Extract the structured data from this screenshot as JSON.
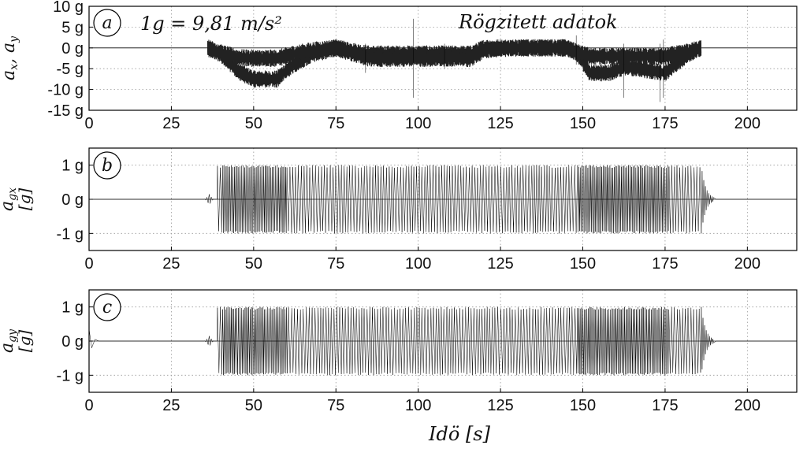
{
  "chart_data": [
    {
      "panel": "a",
      "type": "line",
      "badge": "a",
      "ylabel": "a_x, a_y",
      "formula": "1g = 9,81 m/s²",
      "annotation": "Rögzitett adatok",
      "xlim": [
        0,
        215
      ],
      "ylim": [
        -15,
        10
      ],
      "x_ticks": [
        0,
        25,
        50,
        75,
        100,
        125,
        150,
        175,
        200
      ],
      "y_ticks": [
        10,
        5,
        0,
        -5,
        -10,
        -15
      ],
      "y_tick_labels": [
        "10 g",
        "5 g",
        "0 g",
        "-5 g",
        "-10 g",
        "-15 g"
      ],
      "grid": true,
      "series": [
        {
          "x": [
            36,
            40,
            45,
            50,
            57,
            62,
            68,
            75,
            85,
            98,
            100,
            110,
            116,
            120,
            130,
            145,
            148,
            152,
            158,
            163,
            167,
            175,
            182,
            186
          ],
          "values": [
            0,
            -1.5,
            -5.5,
            -7.5,
            -7.5,
            -4,
            -1.5,
            0,
            -1.5,
            -1.5,
            -1.5,
            -1.5,
            -1.5,
            0,
            0,
            0,
            -1,
            -6,
            -6,
            -4.5,
            -5,
            -6,
            -1.5,
            0
          ]
        },
        {
          "x": [
            36,
            40,
            45,
            50,
            57,
            62,
            68,
            75,
            85,
            98,
            100,
            110,
            116,
            120,
            130,
            145,
            148,
            152,
            158,
            163,
            167,
            175,
            182,
            186
          ],
          "values": [
            0,
            -1.2,
            -2.3,
            -2.5,
            -2.5,
            -1.5,
            -0.6,
            0,
            -2.5,
            -2.5,
            -2.5,
            -2.5,
            -2.5,
            -0.5,
            0,
            0,
            -1,
            -2,
            -2,
            -2,
            -2,
            -2,
            -1,
            0
          ]
        }
      ]
    },
    {
      "panel": "b",
      "type": "line",
      "badge": "b",
      "ylabel": "a_gx [g]",
      "xlim": [
        0,
        215
      ],
      "ylim": [
        -1.5,
        1.5
      ],
      "x_ticks": [
        0,
        25,
        50,
        75,
        100,
        125,
        150,
        175,
        200
      ],
      "y_ticks": [
        1,
        0,
        -1
      ],
      "y_tick_labels": [
        "1 g",
        "0 g",
        "-1 g"
      ],
      "grid": true,
      "signal": {
        "start": 39,
        "end": 186,
        "amplitude": 1,
        "pre_blip_x": 36.5,
        "post_ringdown_end": 190
      }
    },
    {
      "panel": "c",
      "type": "line",
      "badge": "c",
      "ylabel": "a_gy [g]",
      "xlabel": "Idö [s]",
      "xlim": [
        0,
        215
      ],
      "ylim": [
        -1.5,
        1.5
      ],
      "x_ticks": [
        0,
        25,
        50,
        75,
        100,
        125,
        150,
        175,
        200
      ],
      "y_ticks": [
        1,
        0,
        -1
      ],
      "y_tick_labels": [
        "1 g",
        "0 g",
        "-1 g"
      ],
      "grid": true,
      "signal": {
        "start": 39,
        "end": 186,
        "amplitude": 1,
        "pre_blip_x": 36.5,
        "post_ringdown_end": 190
      }
    }
  ]
}
